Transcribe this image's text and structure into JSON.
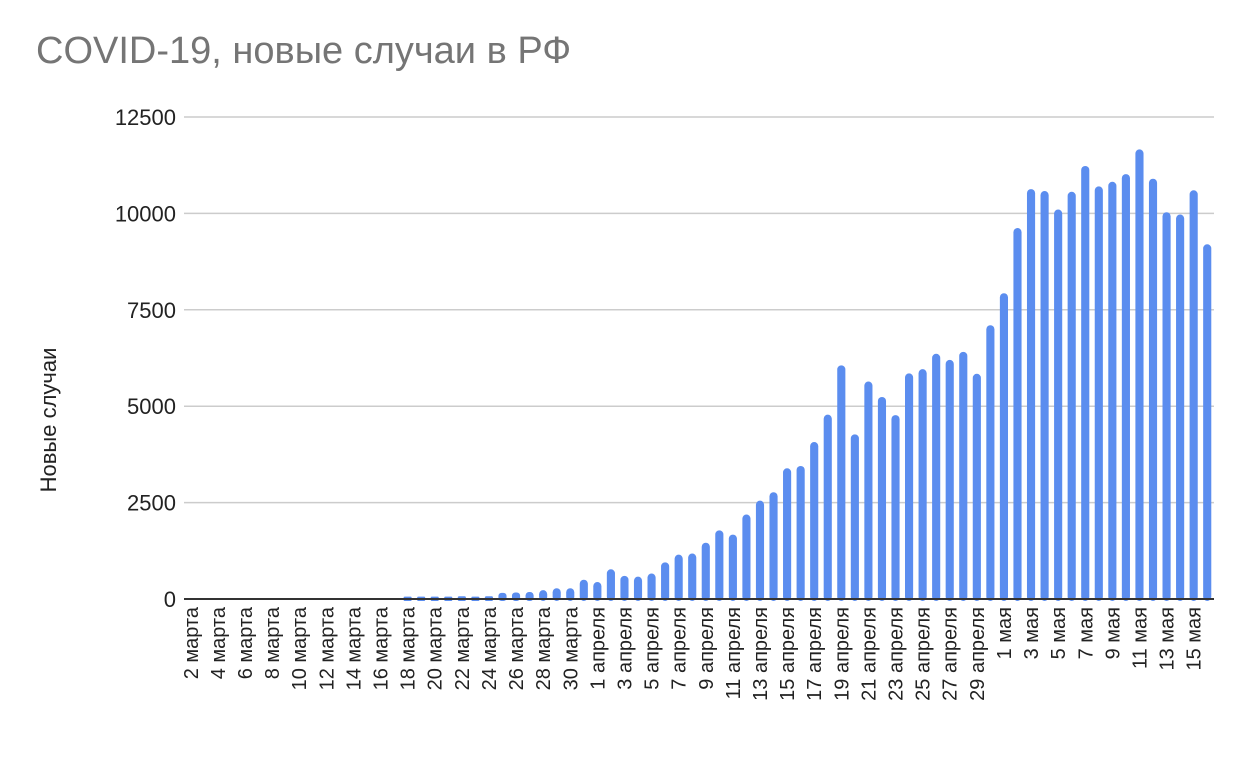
{
  "chart_data": {
    "type": "bar",
    "title": "COVID-19, новые случаи в РФ",
    "xlabel": "",
    "ylabel": "Новые случаи",
    "ylim": [
      0,
      12500
    ],
    "yticks": [
      0,
      2500,
      5000,
      7500,
      10000,
      12500
    ],
    "grid": true,
    "bar_color": "#5B8DEF",
    "categories": [
      "2 марта",
      "3 марта",
      "4 марта",
      "5 марта",
      "6 марта",
      "7 марта",
      "8 марта",
      "9 марта",
      "10 марта",
      "11 марта",
      "12 марта",
      "13 марта",
      "14 марта",
      "15 марта",
      "16 марта",
      "17 марта",
      "18 марта",
      "19 марта",
      "20 марта",
      "21 марта",
      "22 марта",
      "23 марта",
      "24 марта",
      "25 марта",
      "26 марта",
      "27 марта",
      "28 марта",
      "29 марта",
      "30 марта",
      "31 марта",
      "1 апреля",
      "2 апреля",
      "3 апреля",
      "4 апреля",
      "5 апреля",
      "6 апреля",
      "7 апреля",
      "8 апреля",
      "9 апреля",
      "10 апреля",
      "11 апреля",
      "12 апреля",
      "13 апреля",
      "14 апреля",
      "15 апреля",
      "16 апреля",
      "17 апреля",
      "18 апреля",
      "19 апреля",
      "20 апреля",
      "21 апреля",
      "22 апреля",
      "23 апреля",
      "24 апреля",
      "25 апреля",
      "26 апреля",
      "27 апреля",
      "28 апреля",
      "29 апреля",
      "30 апреля",
      "1 мая",
      "2 мая",
      "3 мая",
      "4 мая",
      "5 мая",
      "6 мая",
      "7 мая",
      "8 мая",
      "9 мая",
      "10 мая",
      "11 мая",
      "12 мая",
      "13 мая",
      "14 мая",
      "15 мая",
      "16 мая"
    ],
    "tick_labels": [
      "2 марта",
      "4 марта",
      "6 марта",
      "8 марта",
      "10 марта",
      "12 марта",
      "14 марта",
      "16 марта",
      "18 марта",
      "20 марта",
      "22 марта",
      "24 марта",
      "26 марта",
      "28 марта",
      "30 марта",
      "1 апреля",
      "3 апреля",
      "5 апреля",
      "7 апреля",
      "9 апреля",
      "11 апреля",
      "13 апреля",
      "15 апреля",
      "17 апреля",
      "19 апреля",
      "21 апреля",
      "23 апреля",
      "25 апреля",
      "27 апреля",
      "29 апреля",
      "1 мая",
      "3 мая",
      "5 мая",
      "7 мая",
      "9 мая",
      "11 мая",
      "13 мая",
      "15 мая"
    ],
    "values": [
      0,
      0,
      0,
      0,
      0,
      0,
      0,
      0,
      0,
      0,
      0,
      0,
      0,
      0,
      0,
      0,
      60,
      60,
      60,
      60,
      70,
      60,
      70,
      160,
      170,
      180,
      230,
      280,
      280,
      500,
      440,
      770,
      600,
      580,
      660,
      950,
      1150,
      1180,
      1460,
      1780,
      1670,
      2190,
      2550,
      2770,
      3390,
      3450,
      4070,
      4780,
      6060,
      4270,
      5640,
      5240,
      4770,
      5850,
      5960,
      6360,
      6200,
      6410,
      5840,
      7100,
      7930,
      9620,
      10630,
      10580,
      10100,
      10560,
      11230,
      10700,
      10820,
      11020,
      11660,
      10900,
      10030,
      9970,
      10600,
      9200
    ]
  }
}
